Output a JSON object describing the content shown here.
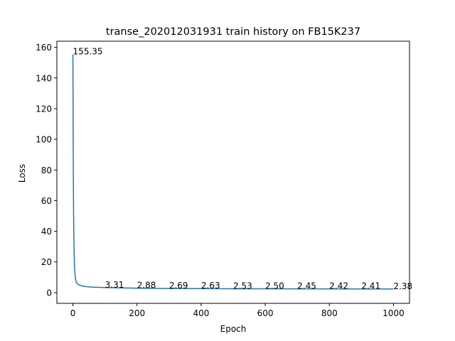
{
  "chart_data": {
    "type": "line",
    "title": "transe_202012031931 train history on FB15K237",
    "xlabel": "Epoch",
    "ylabel": "Loss",
    "xlim": [
      -50,
      1050
    ],
    "ylim": [
      -7,
      164
    ],
    "xticks": [
      0,
      200,
      400,
      600,
      800,
      1000
    ],
    "yticks": [
      0,
      20,
      40,
      60,
      80,
      100,
      120,
      140,
      160
    ],
    "grid": false,
    "line_color": "#1f77b4",
    "series": [
      {
        "x": [
          0,
          1,
          2,
          3,
          4,
          5,
          6,
          8,
          10,
          12,
          15,
          20,
          25,
          30,
          40,
          50,
          60,
          80,
          100,
          150,
          200,
          300,
          400,
          500,
          600,
          700,
          800,
          900,
          1000
        ],
        "values": [
          155.35,
          90.0,
          55.0,
          35.0,
          24.0,
          17.0,
          13.0,
          9.0,
          7.2,
          6.3,
          5.6,
          5.0,
          4.6,
          4.3,
          3.95,
          3.75,
          3.6,
          3.42,
          3.31,
          3.05,
          2.88,
          2.69,
          2.63,
          2.53,
          2.5,
          2.45,
          2.42,
          2.41,
          2.38
        ]
      }
    ],
    "annotations": [
      {
        "x": 0,
        "y": 155.35,
        "text": "155.35"
      },
      {
        "x": 100,
        "y": 3.31,
        "text": "3.31"
      },
      {
        "x": 200,
        "y": 2.88,
        "text": "2.88"
      },
      {
        "x": 300,
        "y": 2.69,
        "text": "2.69"
      },
      {
        "x": 400,
        "y": 2.63,
        "text": "2.63"
      },
      {
        "x": 500,
        "y": 2.53,
        "text": "2.53"
      },
      {
        "x": 600,
        "y": 2.5,
        "text": "2.50"
      },
      {
        "x": 700,
        "y": 2.45,
        "text": "2.45"
      },
      {
        "x": 800,
        "y": 2.42,
        "text": "2.42"
      },
      {
        "x": 900,
        "y": 2.41,
        "text": "2.41"
      },
      {
        "x": 1000,
        "y": 2.38,
        "text": "2.38"
      }
    ]
  }
}
